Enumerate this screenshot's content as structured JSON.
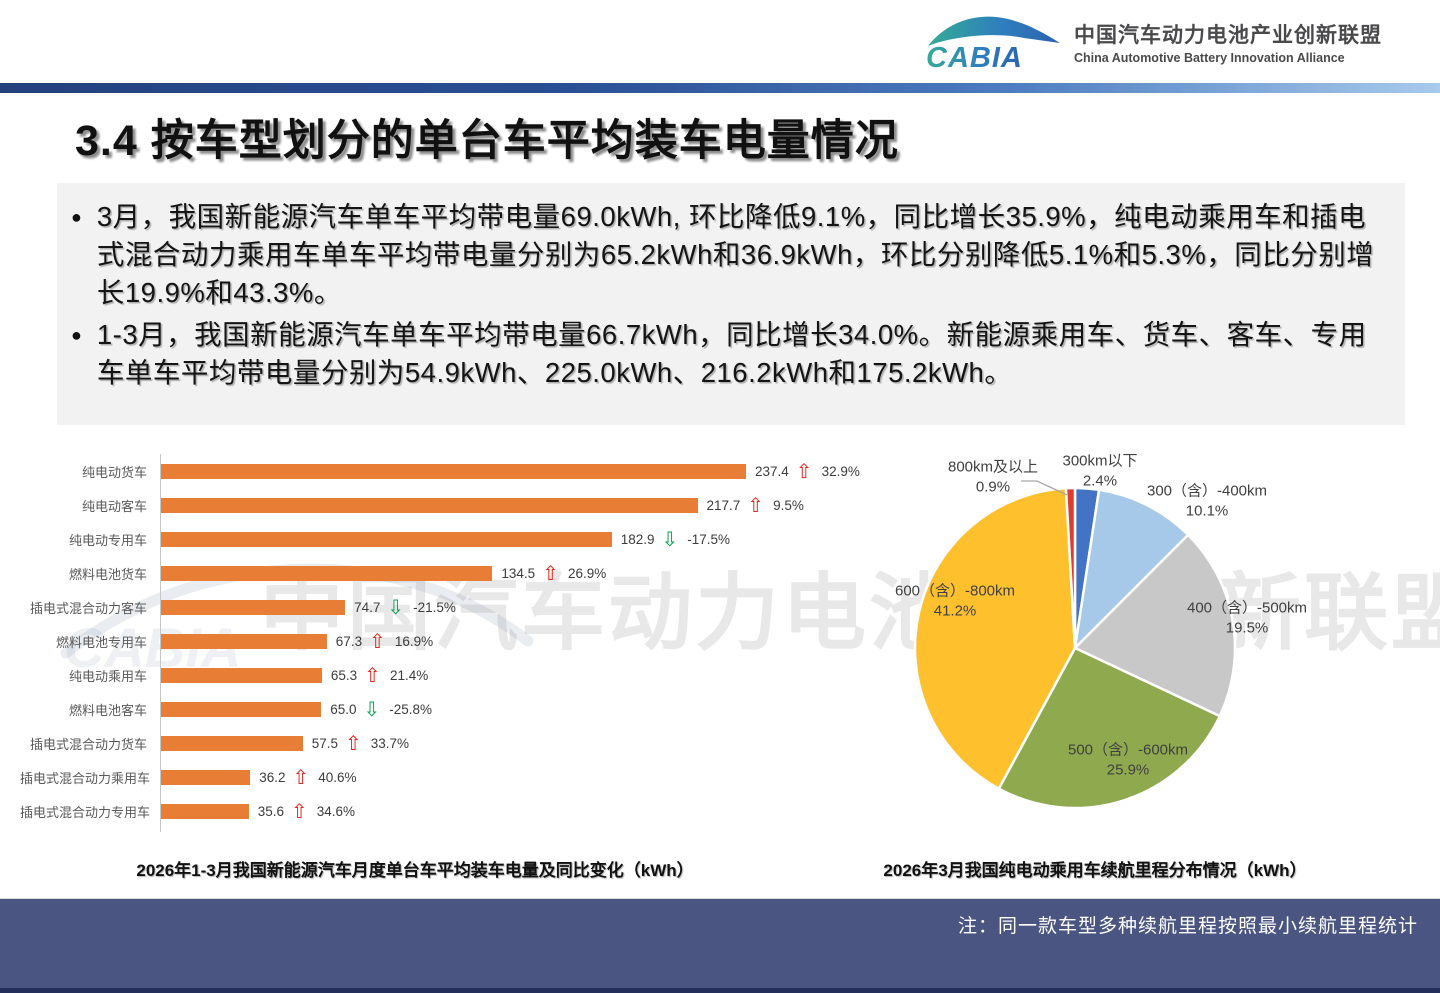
{
  "header": {
    "logo_acronym": "CABIA",
    "org_name_cn": "中国汽车动力电池产业创新联盟",
    "org_name_en": "China Automotive Battery Innovation Alliance"
  },
  "title": "3.4 按车型划分的单台车平均装车电量情况",
  "summary": {
    "bullet1": "3月，我国新能源汽车单车平均带电量69.0kWh, 环比降低9.1%，同比增长35.9%，纯电动乘用车和插电式混合动力乘用车单车平均带电量分别为65.2kWh和36.9kWh，环比分别降低5.1%和5.3%，同比分别增长19.9%和43.3%。",
    "bullet2": "1-3月，我国新能源汽车单车平均带电量66.7kWh，同比增长34.0%。新能源乘用车、货车、客车、专用车单车平均带电量分别为54.9kWh、225.0kWh、216.2kWh和175.2kWh。"
  },
  "watermark": {
    "text": "中国汽车动力电池产业创新联盟"
  },
  "chart_data": [
    {
      "type": "bar",
      "orientation": "horizontal",
      "title": "2026年1-3月我国新能源汽车月度单台车平均装车电量及同比变化（kWh）",
      "unit": "kWh",
      "bar_color": "#e87e35",
      "up_arrow_color": "#e8251d",
      "down_arrow_color": "#00a550",
      "xlim": [
        0,
        240
      ],
      "items": [
        {
          "label": "纯电动货车",
          "value": "237.4",
          "change": "32.9%",
          "direction": "up"
        },
        {
          "label": "纯电动客车",
          "value": "217.7",
          "change": "9.5%",
          "direction": "up"
        },
        {
          "label": "纯电动专用车",
          "value": "182.9",
          "change": "-17.5%",
          "direction": "down"
        },
        {
          "label": "燃料电池货车",
          "value": "134.5",
          "change": "26.9%",
          "direction": "up"
        },
        {
          "label": "插电式混合动力客车",
          "value": "74.7",
          "change": "-21.5%",
          "direction": "down"
        },
        {
          "label": "燃料电池专用车",
          "value": "67.3",
          "change": "16.9%",
          "direction": "up"
        },
        {
          "label": "纯电动乘用车",
          "value": "65.3",
          "change": "21.4%",
          "direction": "up"
        },
        {
          "label": "燃料电池客车",
          "value": "65.0",
          "change": "-25.8%",
          "direction": "down"
        },
        {
          "label": "插电式混合动力货车",
          "value": "57.5",
          "change": "33.7%",
          "direction": "up"
        },
        {
          "label": "插电式混合动力乘用车",
          "value": "36.2",
          "change": "40.6%",
          "direction": "up"
        },
        {
          "label": "插电式混合动力专用车",
          "value": "35.6",
          "change": "34.6%",
          "direction": "up"
        }
      ]
    },
    {
      "type": "pie",
      "title": "2026年3月我国纯电动乘用车续航里程分布情况（kWh）",
      "start_angle_deg": 0,
      "direction": "clockwise",
      "slices": [
        {
          "label": "300km以下",
          "pct": 2.4,
          "color": "#4472c4"
        },
        {
          "label": "300（含）-400km",
          "pct": 10.1,
          "color": "#a6c9ea"
        },
        {
          "label": "400（含）-500km",
          "pct": 19.5,
          "color": "#c8c8c8"
        },
        {
          "label": "500（含）-600km",
          "pct": 25.9,
          "color": "#8fa94f"
        },
        {
          "label": "600（含）-800km",
          "pct": 41.2,
          "color": "#ffc02e"
        },
        {
          "label": "800km及以上",
          "pct": 0.9,
          "color": "#de3b31"
        }
      ]
    }
  ],
  "footer": {
    "note": "注：同一款车型多种续航里程按照最小续航里程统计"
  }
}
